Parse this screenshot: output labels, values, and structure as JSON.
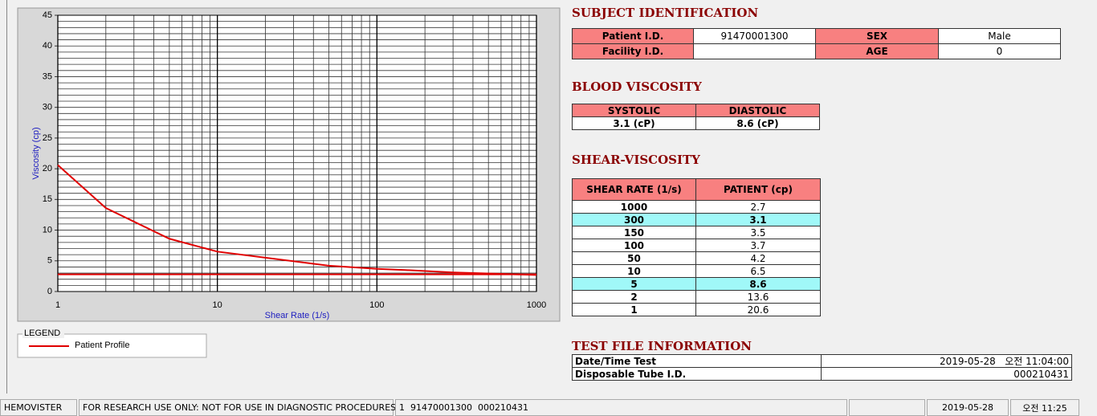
{
  "chart_data": {
    "type": "line",
    "xlabel": "Shear Rate (1/s)",
    "ylabel": "Viscosity (cp)",
    "log_x": true,
    "x": [
      1,
      2,
      5,
      10,
      50,
      100,
      150,
      300,
      1000
    ],
    "series": [
      {
        "name": "Patient Profile",
        "color": "#e00000",
        "values": [
          20.6,
          13.6,
          8.6,
          6.5,
          4.2,
          3.7,
          3.5,
          3.1,
          2.7
        ]
      }
    ],
    "hlines": [
      2.8
    ],
    "xlim": [
      1,
      1000
    ],
    "xticks": [
      1,
      10,
      100,
      1000
    ],
    "xminor_ticks": [
      2,
      3,
      4,
      5,
      6,
      7,
      8,
      9,
      20,
      30,
      40,
      50,
      60,
      70,
      80,
      90,
      200,
      300,
      400,
      500,
      600,
      700,
      800,
      900
    ],
    "ylim": [
      0,
      45
    ],
    "yticks": [
      0,
      5,
      10,
      15,
      20,
      25,
      30,
      35,
      40,
      45
    ],
    "y_minor_step": 1,
    "grid": true,
    "legend_title": "LEGEND"
  },
  "subject": {
    "title": "SUBJECT IDENTIFICATION",
    "rows": [
      [
        "Patient I.D.",
        "91470001300",
        "SEX",
        "Male"
      ],
      [
        "Facility I.D.",
        null,
        "AGE",
        "0"
      ]
    ]
  },
  "blood_viscosity": {
    "title": "BLOOD VISCOSITY",
    "headers": [
      "SYSTOLIC",
      "DIASTOLIC"
    ],
    "values": [
      "3.1 (cP)",
      "8.6 (cP)"
    ]
  },
  "shear_viscosity": {
    "title": "SHEAR-VISCOSITY",
    "headers": [
      "SHEAR RATE (1/s)",
      "PATIENT (cp)"
    ],
    "rows": [
      [
        "1000",
        "2.7"
      ],
      [
        "300",
        "3.1"
      ],
      [
        "150",
        "3.5"
      ],
      [
        "100",
        "3.7"
      ],
      [
        "50",
        "4.2"
      ],
      [
        "10",
        "6.5"
      ],
      [
        "5",
        "8.6"
      ],
      [
        "2",
        "13.6"
      ],
      [
        "1",
        "20.6"
      ]
    ],
    "highlight_rows": [
      1,
      6
    ]
  },
  "test_file": {
    "title": "TEST FILE INFORMATION",
    "rows": [
      [
        "Date/Time Test",
        "2019-05-28   오전 11:04:00"
      ],
      [
        "Disposable Tube I.D.",
        "000210431"
      ]
    ]
  },
  "status_bar": [
    "HEMOVISTER",
    "FOR RESEARCH USE ONLY: NOT FOR USE IN DIAGNOSTIC PROCEDURES",
    "1  91470001300  000210431",
    null,
    "2019-05-28",
    "오전 11:25"
  ]
}
